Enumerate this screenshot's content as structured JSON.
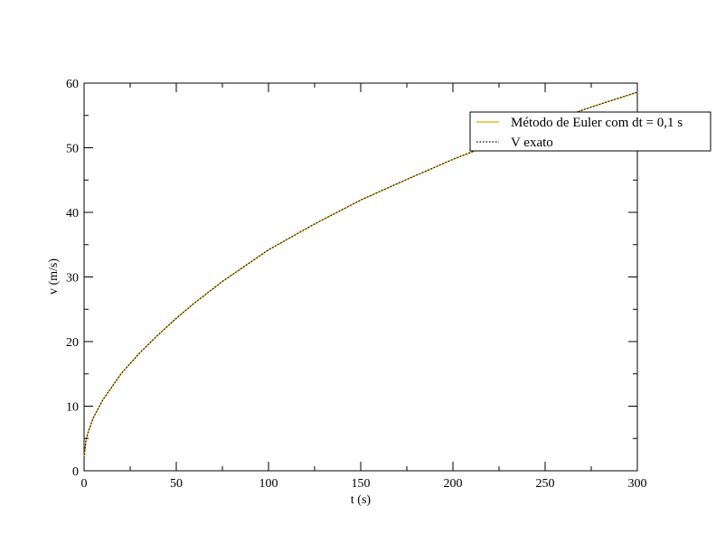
{
  "chart_data": {
    "type": "line",
    "title": "",
    "xlabel": "t (s)",
    "ylabel": "v (m/s)",
    "xlim": [
      0,
      300
    ],
    "ylim": [
      0,
      60
    ],
    "x_ticks": [
      0,
      50,
      100,
      150,
      200,
      250,
      300
    ],
    "x_minor_step": 25,
    "y_ticks": [
      0,
      10,
      20,
      30,
      40,
      50,
      60
    ],
    "y_minor_step": 5,
    "grid": false,
    "legend_position": "top-right, extending past plot edge",
    "series": [
      {
        "name": "Método de Euler com dt = 0,1 s",
        "color": "#e8a400",
        "style": "solid",
        "x": [
          0,
          1,
          2,
          5,
          10,
          20,
          30,
          40,
          50,
          60,
          75,
          100,
          125,
          150,
          175,
          200,
          225,
          250,
          275,
          300
        ],
        "y": [
          2.0,
          4.6,
          5.8,
          8.2,
          10.9,
          15.0,
          18.2,
          21.0,
          23.6,
          26.0,
          29.3,
          34.2,
          38.2,
          41.9,
          45.1,
          48.2,
          51.0,
          53.8,
          56.3,
          58.6
        ]
      },
      {
        "name": "V exato",
        "color": "#000000",
        "style": "dotted",
        "x": [
          0,
          1,
          2,
          5,
          10,
          20,
          30,
          40,
          50,
          60,
          75,
          100,
          125,
          150,
          175,
          200,
          225,
          250,
          275,
          300
        ],
        "y": [
          2.0,
          4.6,
          5.8,
          8.2,
          10.9,
          15.0,
          18.2,
          21.0,
          23.6,
          26.0,
          29.3,
          34.2,
          38.2,
          41.9,
          45.1,
          48.2,
          51.0,
          53.8,
          56.3,
          58.6
        ]
      }
    ]
  }
}
